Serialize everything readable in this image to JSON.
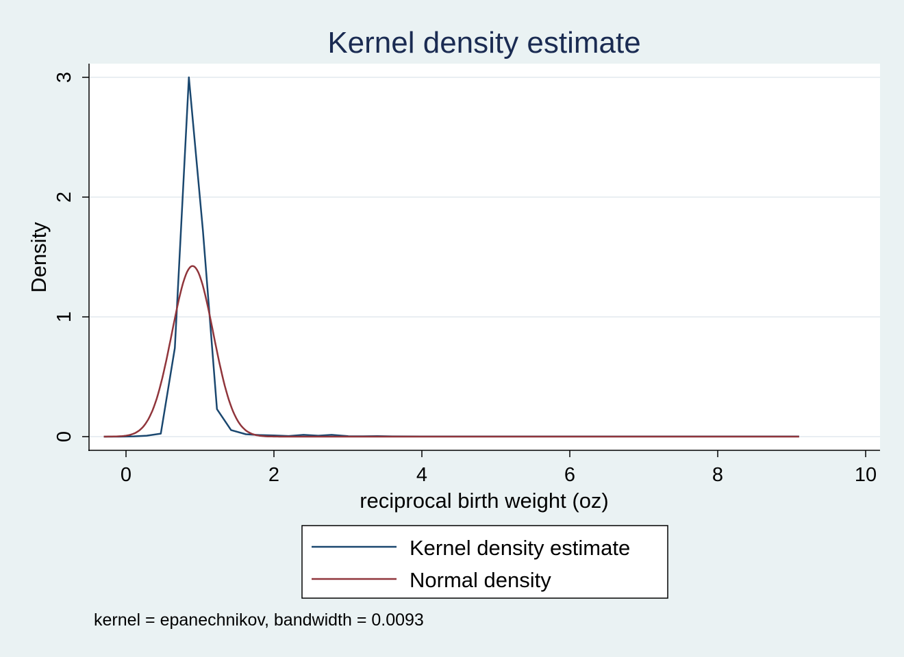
{
  "chart_data": {
    "type": "line",
    "title": "Kernel density estimate",
    "xlabel": "reciprocal birth weight (oz)",
    "ylabel": "Density",
    "xlim": [
      -0.5,
      10.2
    ],
    "ylim": [
      -0.12,
      3.1
    ],
    "x_ticks": [
      0,
      2,
      4,
      6,
      8,
      10
    ],
    "y_ticks": [
      0,
      1,
      2,
      3
    ],
    "grid": true,
    "legend_position": "bottom-center",
    "note": "kernel = epanechnikov, bandwidth = 0.0093",
    "series": [
      {
        "name": "Kernel density estimate",
        "color": "#1a476f",
        "points": [
          [
            -0.3,
            0
          ],
          [
            -0.1,
            0
          ],
          [
            0.1,
            0.002
          ],
          [
            0.28,
            0.008
          ],
          [
            0.47,
            0.025
          ],
          [
            0.66,
            0.74
          ],
          [
            0.85,
            3.0
          ],
          [
            1.04,
            1.72
          ],
          [
            1.23,
            0.23
          ],
          [
            1.42,
            0.055
          ],
          [
            1.62,
            0.02
          ],
          [
            1.81,
            0.013
          ],
          [
            2.0,
            0.01
          ],
          [
            2.2,
            0.005
          ],
          [
            2.4,
            0.015
          ],
          [
            2.6,
            0.008
          ],
          [
            2.78,
            0.015
          ],
          [
            3.0,
            0.004
          ],
          [
            3.2,
            0.003
          ],
          [
            3.4,
            0.004
          ],
          [
            3.6,
            0.002
          ],
          [
            4.0,
            0.001
          ],
          [
            5.0,
            0.001
          ],
          [
            6.0,
            0.001
          ],
          [
            7.0,
            0.001
          ],
          [
            8.0,
            0.001
          ],
          [
            9.1,
            0.001
          ]
        ]
      },
      {
        "name": "Normal density",
        "color": "#90353b",
        "mean": 0.9,
        "sd": 0.28,
        "x_range": [
          -0.3,
          9.1
        ]
      }
    ]
  }
}
